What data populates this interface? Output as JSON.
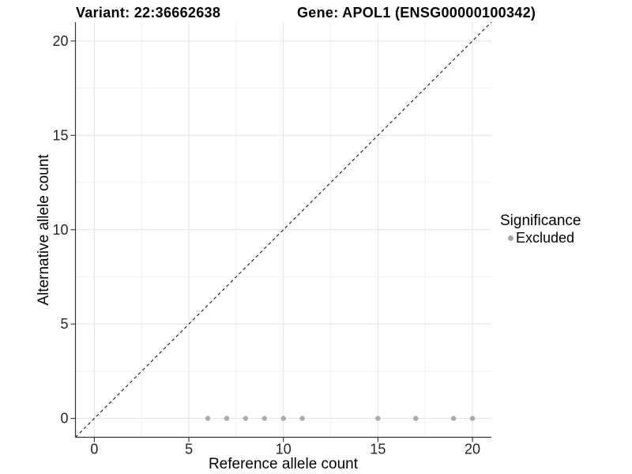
{
  "header": {
    "variant_title": "Variant: 22:36662638",
    "gene_title": "Gene: APOL1 (ENSG00000100342)"
  },
  "chart_data": {
    "type": "scatter",
    "title": "Variant: 22:36662638   Gene: APOL1 (ENSG00000100342)",
    "xlabel": "Reference allele count",
    "ylabel": "Alternative allele count",
    "xlim": [
      -1,
      21
    ],
    "ylim": [
      -1,
      21
    ],
    "x_ticks": [
      0,
      5,
      10,
      15,
      20
    ],
    "y_ticks": [
      0,
      5,
      10,
      15,
      20
    ],
    "x_minor_ticks": [
      2.5,
      7.5,
      12.5,
      17.5
    ],
    "y_minor_ticks": [
      2.5,
      7.5,
      12.5,
      17.5
    ],
    "grid": true,
    "series": [
      {
        "name": "Excluded",
        "color": "#ababab",
        "points": [
          [
            6,
            0
          ],
          [
            7,
            0
          ],
          [
            8,
            0
          ],
          [
            9,
            0
          ],
          [
            10,
            0
          ],
          [
            11,
            0
          ],
          [
            15,
            0
          ],
          [
            17,
            0
          ],
          [
            19,
            0
          ],
          [
            20,
            0
          ]
        ]
      }
    ],
    "reference_line": {
      "style": "dashed",
      "from": [
        -1,
        -1
      ],
      "to": [
        21,
        21
      ],
      "color": "#000000"
    },
    "legend": {
      "position": "right",
      "title": "Significance",
      "items": [
        {
          "label": "Excluded",
          "color": "#a6a6a6"
        }
      ]
    },
    "colors": {
      "grid_major": "#e3e3e3",
      "grid_minor": "#f1f1f1",
      "axis_line": "#333333",
      "tick_label": "#262626",
      "background": "#ffffff"
    }
  }
}
